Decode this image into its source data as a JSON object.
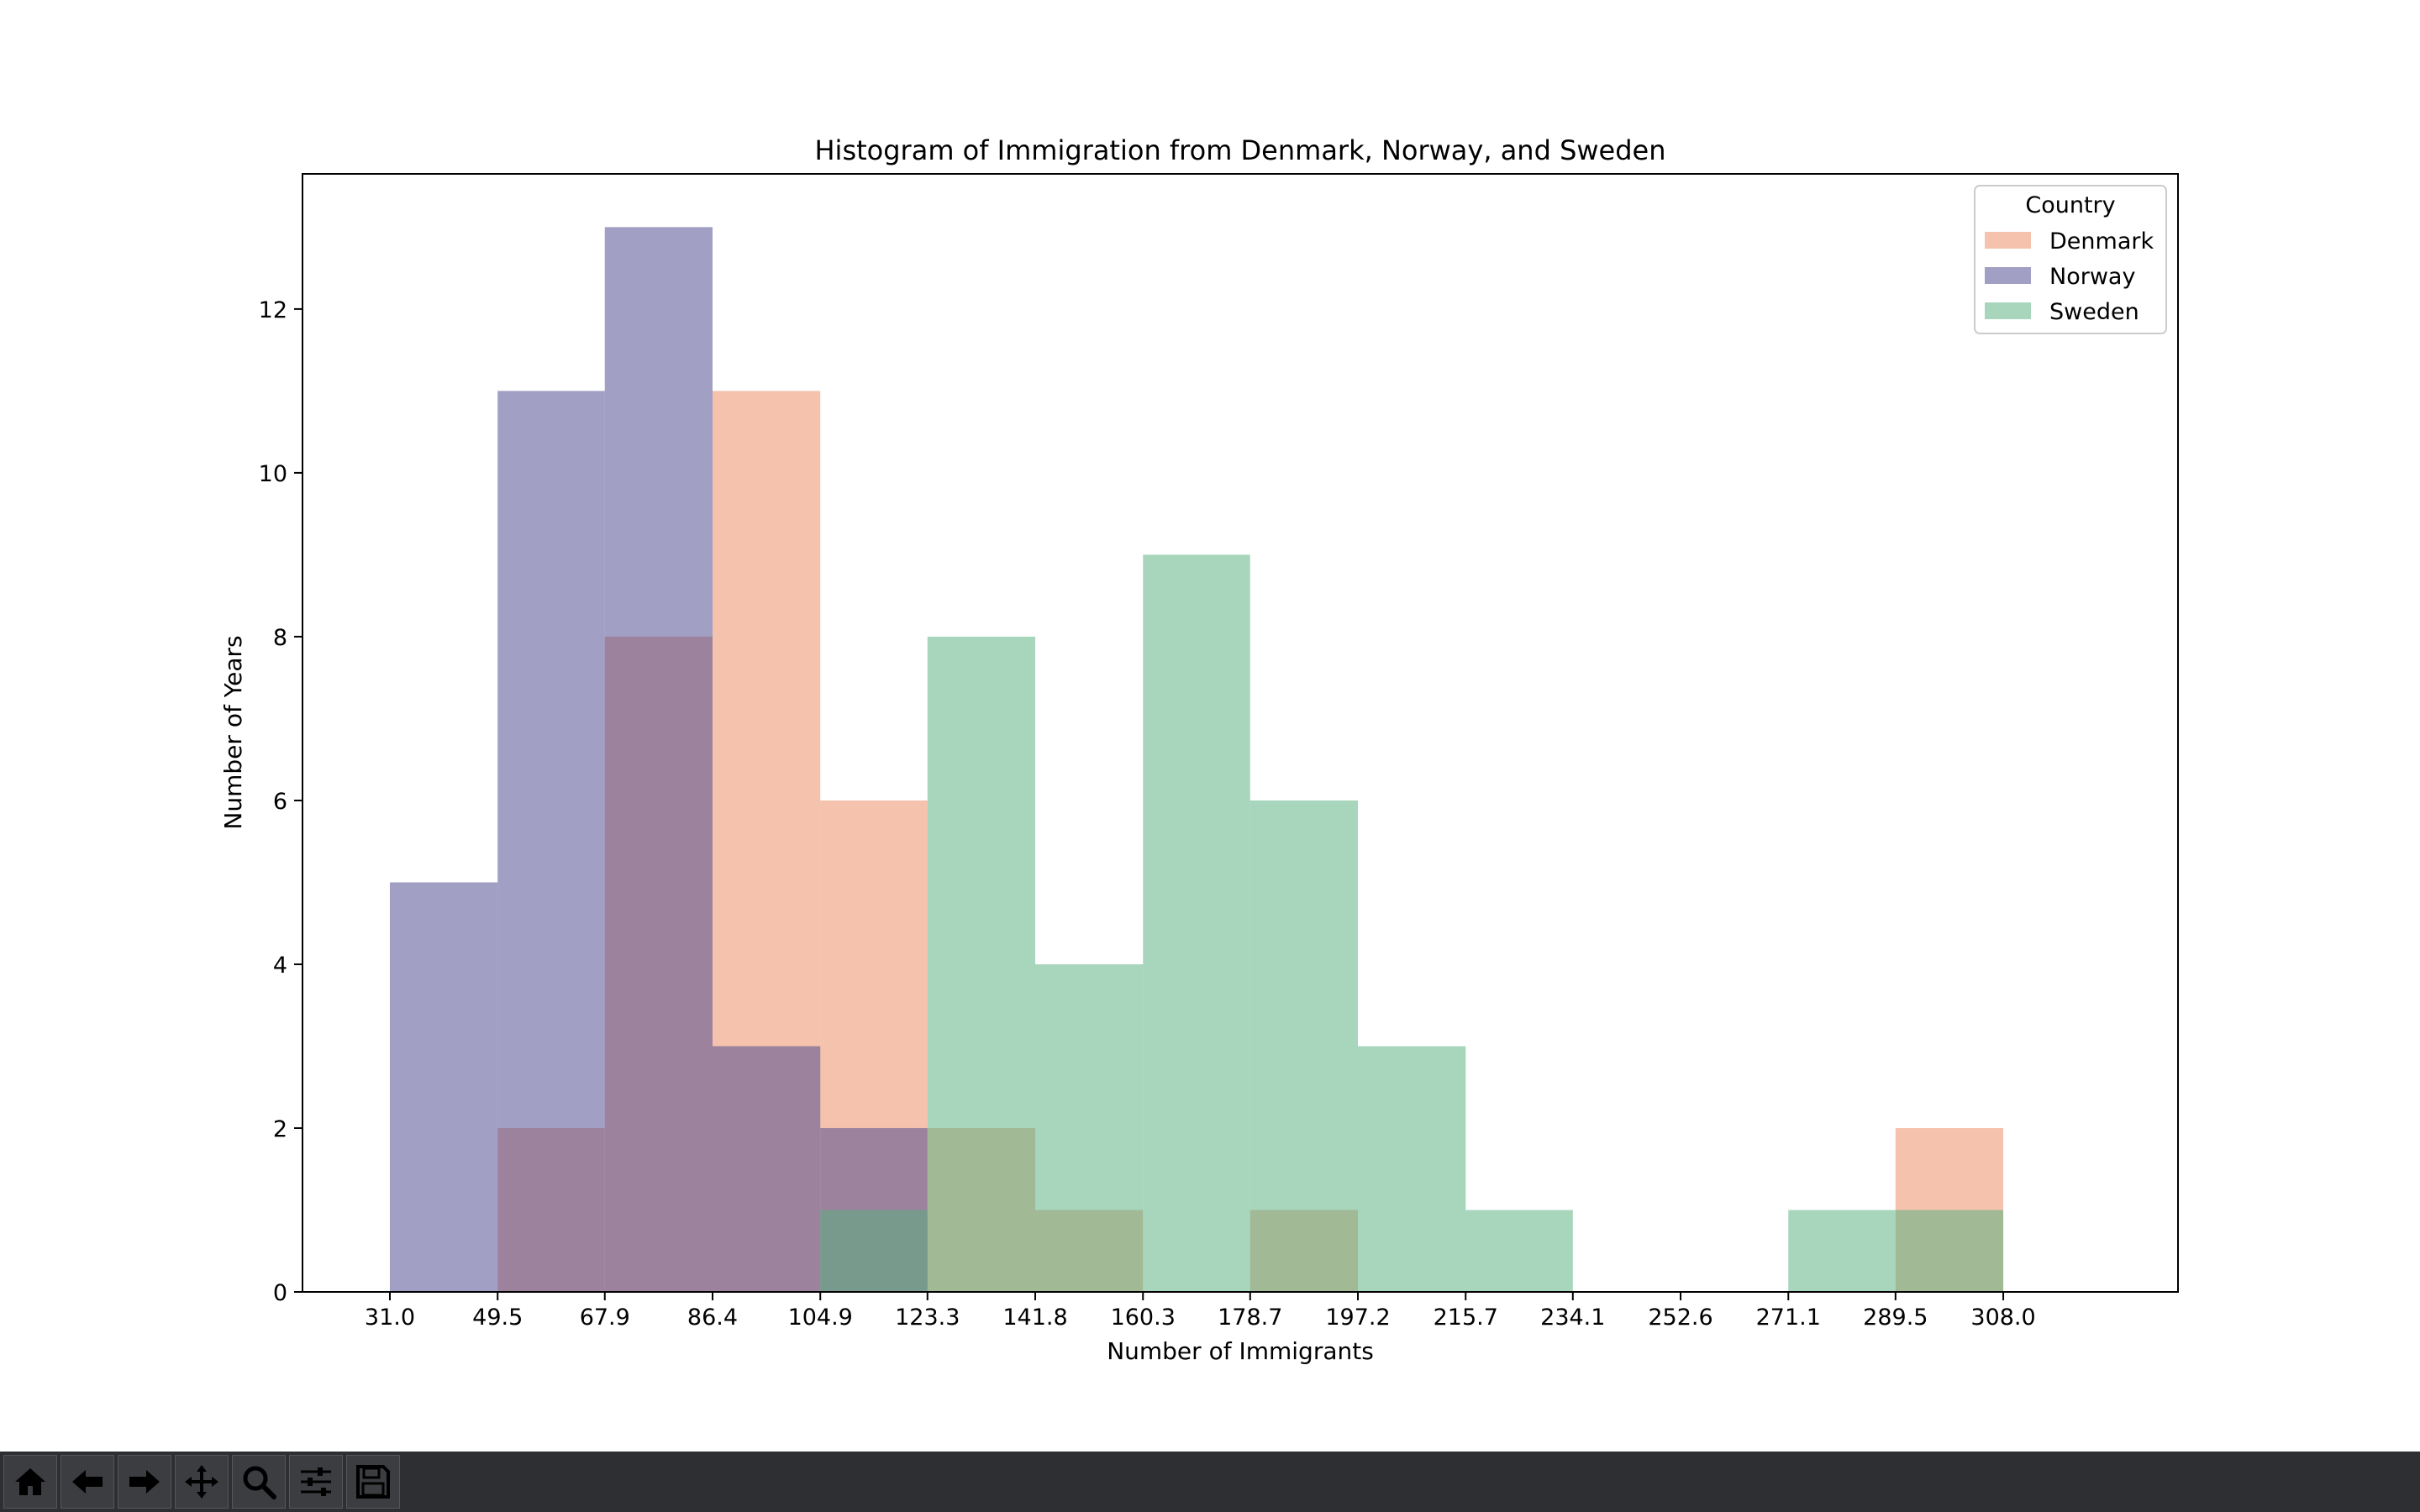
{
  "toolbar": {
    "buttons": [
      {
        "name": "home-icon",
        "icon": "home"
      },
      {
        "name": "back-arrow-icon",
        "icon": "back"
      },
      {
        "name": "forward-arrow-icon",
        "icon": "forward"
      },
      {
        "name": "pan-move-icon",
        "icon": "pan"
      },
      {
        "name": "zoom-magnifier-icon",
        "icon": "zoom"
      },
      {
        "name": "configure-subplots-icon",
        "icon": "sliders"
      },
      {
        "name": "save-disk-icon",
        "icon": "save"
      }
    ]
  },
  "chart_data": {
    "type": "bar",
    "title": "Histogram of Immigration from Denmark, Norway, and Sweden",
    "xlabel": "Number of Immigrants",
    "ylabel": "Number of Years",
    "xlim": [
      16,
      338
    ],
    "ylim": [
      0,
      13.65
    ],
    "x_ticks": [
      "31.0",
      "49.5",
      "67.9",
      "86.4",
      "104.9",
      "123.3",
      "141.8",
      "160.3",
      "178.7",
      "197.2",
      "215.7",
      "234.1",
      "252.6",
      "271.1",
      "289.5",
      "308.0"
    ],
    "bin_edges": [
      31.0,
      49.5,
      67.9,
      86.4,
      104.9,
      123.3,
      141.8,
      160.3,
      178.7,
      197.2,
      215.7,
      234.1,
      252.6,
      271.1,
      289.5,
      308.0
    ],
    "y_ticks": [
      0,
      2,
      4,
      6,
      8,
      10,
      12
    ],
    "grid": false,
    "legend": {
      "title": "Country",
      "position": "top-right"
    },
    "series": [
      {
        "name": "Denmark",
        "color": "#eb8f6a",
        "alpha": 0.55,
        "counts": [
          0,
          2,
          8,
          11,
          6,
          2,
          1,
          0,
          1,
          0,
          0,
          0,
          0,
          0,
          2
        ]
      },
      {
        "name": "Norway",
        "color": "#4e4a8f",
        "alpha": 0.53,
        "counts": [
          5,
          11,
          13,
          3,
          2,
          0,
          0,
          0,
          0,
          0,
          0,
          0,
          0,
          0,
          0
        ]
      },
      {
        "name": "Sweden",
        "color": "#56b07e",
        "alpha": 0.52,
        "counts": [
          0,
          0,
          0,
          0,
          1,
          8,
          4,
          9,
          6,
          3,
          1,
          0,
          0,
          1,
          1
        ]
      }
    ]
  }
}
